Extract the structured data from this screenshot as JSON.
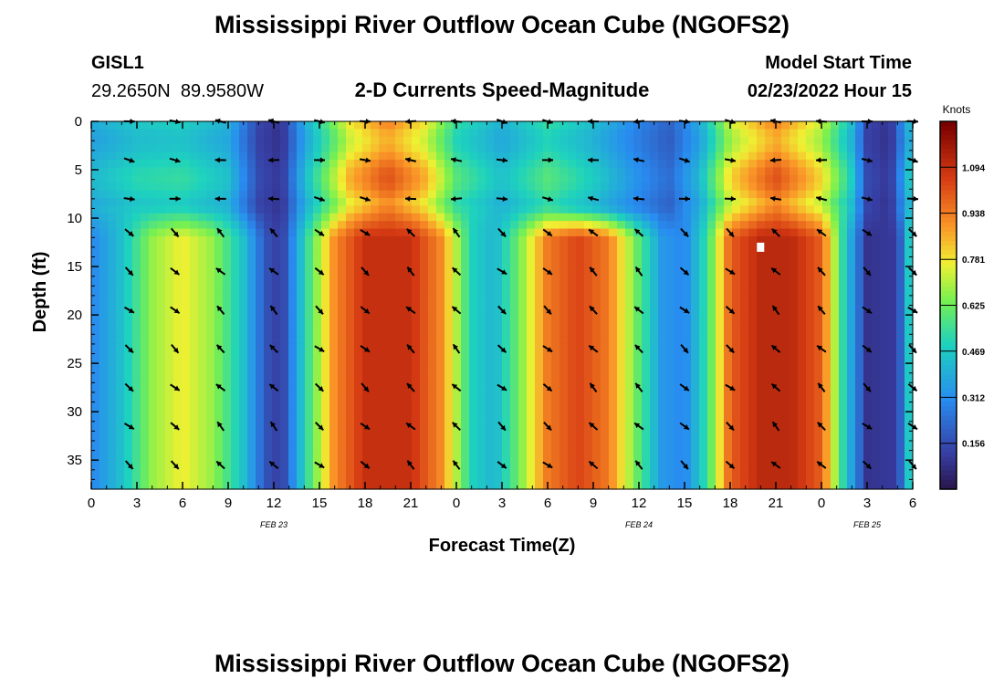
{
  "header": {
    "title": "Mississippi River Outflow Ocean Cube (NGOFS2)",
    "station_id": "GISL1",
    "station_coords": "29.2650N  89.9580W",
    "plot_title": "2-D Currents Speed-Magnitude",
    "model_start_label": "Model Start Time",
    "model_start_value": "02/23/2022 Hour 15"
  },
  "footer": {
    "title": "Mississippi River Outflow Ocean Cube (NGOFS2)"
  },
  "colors": {
    "background": "#ffffff",
    "text": "#000000",
    "arrow": "#000000",
    "marker": "#ffffff"
  },
  "chart_data": {
    "type": "heatmap",
    "title": "2-D Currents Speed-Magnitude",
    "xlabel": "Forecast Time(Z)",
    "ylabel": "Depth (ft)",
    "xlim": [
      0,
      54
    ],
    "ylim": [
      0,
      38
    ],
    "y_inverted": true,
    "x_ticks": [
      0,
      3,
      6,
      9,
      12,
      15,
      18,
      21,
      24,
      27,
      30,
      33,
      36,
      39,
      42,
      45,
      48,
      51,
      54
    ],
    "x_tick_labels": [
      "0",
      "3",
      "6",
      "9",
      "12",
      "15",
      "18",
      "21",
      "0",
      "3",
      "6",
      "9",
      "12",
      "15",
      "18",
      "21",
      "0",
      "3",
      "6"
    ],
    "y_ticks": [
      0,
      5,
      10,
      15,
      20,
      25,
      30,
      35
    ],
    "y_tick_labels": [
      "0",
      "5",
      "10",
      "15",
      "20",
      "25",
      "30",
      "35"
    ],
    "date_labels": [
      {
        "x": 12,
        "text": "FEB 23"
      },
      {
        "x": 36,
        "text": "FEB 24"
      },
      {
        "x": 51,
        "text": "FEB 25"
      }
    ],
    "colorbar": {
      "title": "Knots",
      "min": 0.0,
      "max": 1.25,
      "ticks": [
        1.094,
        0.938,
        0.781,
        0.625,
        0.469,
        0.312,
        0.156
      ],
      "tick_labels": [
        "1.094",
        "0.938",
        "0.781",
        "0.625",
        "0.469",
        "0.312",
        "0.156"
      ]
    },
    "grid": false,
    "layer_boundary_depth_ft": 11,
    "surface_layer_speed_knots": [
      [
        0,
        0.4
      ],
      [
        3,
        0.48
      ],
      [
        6,
        0.5
      ],
      [
        9,
        0.42
      ],
      [
        11,
        0.15
      ],
      [
        12.5,
        0.1
      ],
      [
        14,
        0.4
      ],
      [
        17,
        0.8
      ],
      [
        19.5,
        0.95
      ],
      [
        22,
        0.8
      ],
      [
        24,
        0.55
      ],
      [
        27,
        0.42
      ],
      [
        30,
        0.55
      ],
      [
        33,
        0.45
      ],
      [
        36,
        0.3
      ],
      [
        38,
        0.22
      ],
      [
        40,
        0.4
      ],
      [
        42,
        0.75
      ],
      [
        45,
        0.95
      ],
      [
        48,
        0.75
      ],
      [
        50,
        0.45
      ],
      [
        51,
        0.15
      ],
      [
        52.5,
        0.1
      ],
      [
        54,
        0.5
      ]
    ],
    "deep_layer_speed_knots": [
      [
        0,
        0.3
      ],
      [
        2,
        0.45
      ],
      [
        4,
        0.68
      ],
      [
        6,
        0.78
      ],
      [
        8,
        0.68
      ],
      [
        10,
        0.45
      ],
      [
        11.5,
        0.18
      ],
      [
        12.5,
        0.12
      ],
      [
        14,
        0.5
      ],
      [
        16,
        0.92
      ],
      [
        18,
        1.1
      ],
      [
        21,
        1.1
      ],
      [
        23,
        0.92
      ],
      [
        25,
        0.5
      ],
      [
        26.5,
        0.42
      ],
      [
        28,
        0.62
      ],
      [
        30,
        0.95
      ],
      [
        32,
        1.05
      ],
      [
        34,
        0.95
      ],
      [
        36,
        0.6
      ],
      [
        37.5,
        0.35
      ],
      [
        39,
        0.3
      ],
      [
        40.5,
        0.55
      ],
      [
        42,
        1.0
      ],
      [
        44,
        1.12
      ],
      [
        46,
        1.12
      ],
      [
        48,
        1.0
      ],
      [
        49.5,
        0.5
      ],
      [
        51,
        0.1
      ],
      [
        53,
        0.12
      ],
      [
        54,
        0.6
      ]
    ],
    "vector_times": [
      2.5,
      5.5,
      8.5,
      12,
      15,
      18,
      21,
      24,
      27,
      30,
      33,
      36,
      39,
      42,
      45,
      48,
      51,
      54
    ],
    "vector_depths_ft": [
      0,
      4,
      8,
      11.5,
      15.5,
      19.5,
      23.5,
      27.5,
      31.5,
      35.5
    ],
    "marker": {
      "x": 44,
      "y": 13
    }
  }
}
